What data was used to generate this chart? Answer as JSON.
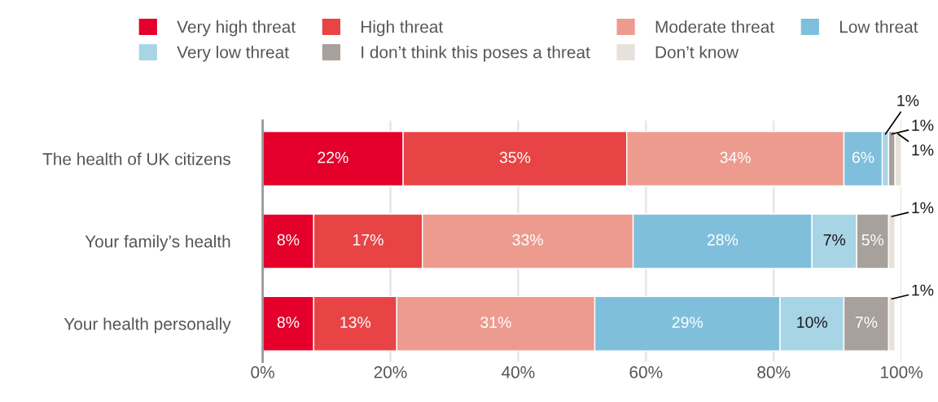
{
  "chart_data": {
    "type": "bar",
    "orientation": "horizontal",
    "stacked": true,
    "categories": [
      "The health of UK citizens",
      "Your family’s health",
      "Your health personally"
    ],
    "series": [
      {
        "name": "Very high threat",
        "color": "#e4002b",
        "values": [
          22,
          8,
          8
        ],
        "value_labels": [
          "22%",
          "8%",
          "8%"
        ]
      },
      {
        "name": "High threat",
        "color": "#e84446",
        "values": [
          35,
          17,
          13
        ],
        "value_labels": [
          "35%",
          "17%",
          "13%"
        ]
      },
      {
        "name": "Moderate threat",
        "color": "#ee9b8f",
        "values": [
          34,
          33,
          31
        ],
        "value_labels": [
          "34%",
          "33%",
          "31%"
        ]
      },
      {
        "name": "Low threat",
        "color": "#7fbfdc",
        "values": [
          6,
          28,
          29
        ],
        "value_labels": [
          "6%",
          "28%",
          "29%"
        ]
      },
      {
        "name": "Very low threat",
        "color": "#a8d5e6",
        "values": [
          1,
          7,
          10
        ],
        "value_labels": [
          "1%",
          "7%",
          "10%"
        ]
      },
      {
        "name": "I don’t think this poses a threat",
        "color": "#a7a09b",
        "values": [
          1,
          5,
          7
        ],
        "value_labels": [
          "1%",
          "5%",
          "7%"
        ]
      },
      {
        "name": "Don’t know",
        "color": "#e6e2db",
        "values": [
          1,
          1,
          1
        ],
        "value_labels": [
          "1%",
          "1%",
          "1%"
        ]
      }
    ],
    "xlim": [
      0,
      100
    ],
    "xticks": [
      {
        "value": 0,
        "label": "0%"
      },
      {
        "value": 20,
        "label": "20%"
      },
      {
        "value": 40,
        "label": "40%"
      },
      {
        "value": 60,
        "label": "60%"
      },
      {
        "value": 80,
        "label": "80%"
      },
      {
        "value": 100,
        "label": "100%"
      }
    ],
    "grid": "x",
    "legend": "top"
  }
}
